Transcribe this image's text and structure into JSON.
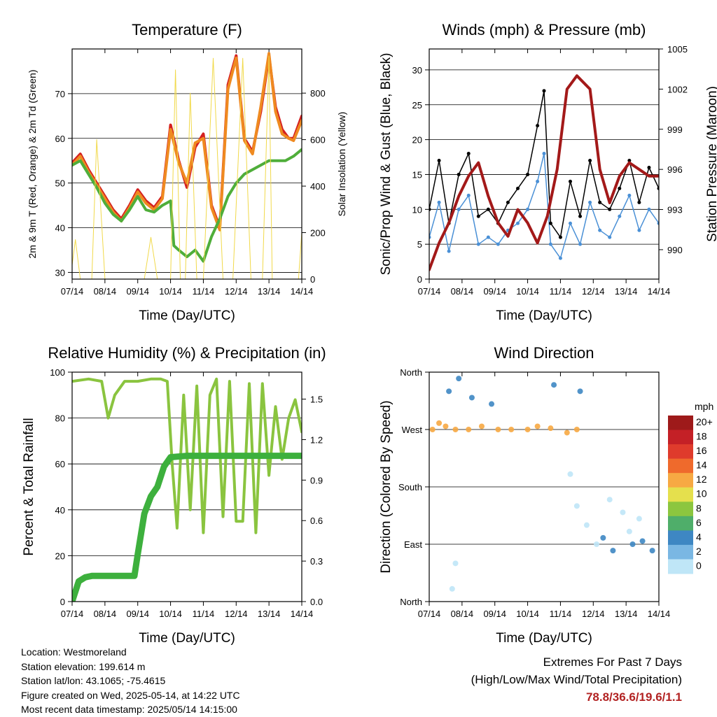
{
  "chart_data": [
    {
      "type": "line",
      "title": "Temperature (F)",
      "xlabel": "Time (Day/UTC)",
      "ylabel": "2m & 9m T (Red, Orange) & 2m Td (Green)",
      "ylabel_right": "Solar Insolation (Yellow)",
      "x_ticks": [
        "07/14",
        "08/14",
        "09/14",
        "10/14",
        "11/14",
        "12/14",
        "13/14",
        "14/14"
      ],
      "y_ticks": [
        "30",
        "40",
        "50",
        "60",
        "70"
      ],
      "y2_ticks": [
        "0",
        "200",
        "400",
        "600",
        "800"
      ],
      "ylim": [
        28.5,
        80
      ],
      "y2lim": [
        0,
        990
      ],
      "grid": true,
      "series": [
        {
          "color": "#d42020",
          "x": [
            0,
            0.25,
            0.5,
            0.75,
            1,
            1.25,
            1.5,
            1.75,
            2,
            2.25,
            2.5,
            2.75,
            3,
            3.25,
            3.5,
            3.75,
            4,
            4.25,
            4.5,
            4.75,
            5,
            5.25,
            5.5,
            5.75,
            6,
            6.2,
            6.4,
            6.6,
            6.75,
            7
          ],
          "values": [
            54.5,
            56.5,
            53,
            50,
            47,
            44,
            42,
            45,
            48.5,
            46,
            44.5,
            47,
            63,
            55,
            49,
            58,
            61,
            45,
            40,
            72,
            78.5,
            60,
            57,
            66,
            78.5,
            67,
            62,
            60,
            60,
            65
          ]
        },
        {
          "color": "#ef8a20",
          "x": [
            0,
            0.25,
            0.5,
            0.75,
            1,
            1.25,
            1.5,
            1.75,
            2,
            2.25,
            2.5,
            2.75,
            3,
            3.25,
            3.5,
            3.75,
            4,
            4.25,
            4.5,
            4.75,
            5,
            5.25,
            5.5,
            5.75,
            6,
            6.2,
            6.4,
            6.6,
            6.75,
            7
          ],
          "values": [
            54,
            56,
            52.5,
            49.5,
            46.5,
            43.5,
            41.5,
            44.5,
            48,
            45.5,
            44,
            46.5,
            62,
            54.5,
            50,
            59,
            60,
            44.5,
            39.5,
            71,
            78,
            59.5,
            56.5,
            67,
            79,
            66,
            61,
            60,
            59.5,
            64
          ]
        },
        {
          "color": "#4fae3a",
          "x": [
            0,
            0.25,
            0.5,
            0.75,
            1,
            1.25,
            1.5,
            1.75,
            2,
            2.25,
            2.5,
            2.75,
            3,
            3.1,
            3.25,
            3.5,
            3.75,
            4,
            4.25,
            4.5,
            4.75,
            5,
            5.25,
            5.5,
            5.75,
            6,
            6.25,
            6.5,
            6.75,
            7
          ],
          "values": [
            54,
            55,
            52,
            49,
            45.5,
            43,
            41.5,
            44,
            47,
            44,
            43.5,
            45,
            46,
            36,
            35,
            33.5,
            35,
            32.5,
            38,
            42,
            47,
            50,
            52,
            53,
            54,
            55,
            55,
            55,
            56,
            57.5
          ]
        },
        {
          "color": "#f1d94a",
          "x": [
            0,
            0.1,
            0.25,
            0.5,
            0.6,
            0.75,
            1,
            1.2,
            1.4,
            1.6,
            1.8,
            2,
            2.2,
            2.4,
            2.6,
            2.8,
            3,
            3.15,
            3.3,
            3.45,
            3.6,
            3.8,
            4,
            4.3,
            4.6,
            4.9,
            5.2,
            5.45,
            5.6,
            5.8,
            6,
            6.1,
            6.3,
            6.5,
            6.7,
            6.9,
            7
          ],
          "y2values": [
            60,
            170,
            0,
            0,
            0,
            600,
            0,
            0,
            0,
            0,
            0,
            0,
            0,
            180,
            0,
            0,
            0,
            900,
            0,
            0,
            800,
            0,
            0,
            950,
            0,
            0,
            950,
            0,
            0,
            0,
            960,
            0,
            0,
            0,
            0,
            0,
            200
          ]
        }
      ]
    },
    {
      "type": "line",
      "title": "Winds (mph) & Pressure (mb)",
      "xlabel": "Time (Day/UTC)",
      "ylabel": "Sonic/Prop Wind & Gust (Blue, Black)",
      "ylabel_right": "Station Pressure (Maroon)",
      "x_ticks": [
        "07/14",
        "08/14",
        "09/14",
        "10/14",
        "11/14",
        "12/14",
        "13/14",
        "14/14"
      ],
      "y_ticks": [
        "0",
        "5",
        "10",
        "15",
        "20",
        "25",
        "30"
      ],
      "y2_ticks": [
        "990",
        "993",
        "996",
        "999",
        "1002",
        "1005"
      ],
      "ylim": [
        0,
        33
      ],
      "y2lim": [
        987.8,
        1005
      ],
      "grid": true,
      "series": [
        {
          "color": "#4a90d6",
          "x": [
            0,
            0.3,
            0.6,
            0.9,
            1.2,
            1.5,
            1.8,
            2.1,
            2.4,
            2.7,
            3,
            3.3,
            3.5,
            3.7,
            4,
            4.3,
            4.6,
            4.9,
            5.2,
            5.5,
            5.8,
            6.1,
            6.4,
            6.7,
            7
          ],
          "values": [
            6,
            11,
            4,
            10,
            12,
            5,
            6,
            5,
            7,
            8,
            10,
            14,
            18,
            5,
            3,
            8,
            5,
            11,
            7,
            6,
            9,
            12,
            7,
            10,
            8
          ]
        },
        {
          "color": "#000000",
          "x": [
            0,
            0.3,
            0.6,
            0.9,
            1.2,
            1.5,
            1.8,
            2.1,
            2.4,
            2.7,
            3,
            3.3,
            3.5,
            3.7,
            4,
            4.3,
            4.6,
            4.9,
            5.2,
            5.5,
            5.8,
            6.1,
            6.4,
            6.7,
            7
          ],
          "values": [
            10,
            17,
            8,
            15,
            18,
            9,
            10,
            8,
            11,
            13,
            15,
            22,
            27,
            8,
            6,
            14,
            9,
            17,
            11,
            10,
            13,
            17,
            11,
            16,
            13
          ]
        },
        {
          "color": "#a31919",
          "x": [
            0,
            0.3,
            0.6,
            0.9,
            1.2,
            1.5,
            1.8,
            2.1,
            2.4,
            2.7,
            3,
            3.3,
            3.6,
            3.9,
            4.2,
            4.5,
            4.7,
            4.9,
            5.2,
            5.5,
            5.8,
            6.1,
            6.4,
            6.7,
            7
          ],
          "y2values": [
            988.5,
            990.5,
            992,
            994,
            995.5,
            996.5,
            994,
            992,
            991,
            993,
            992,
            990.5,
            992.5,
            996,
            1002,
            1003,
            1002.5,
            1002,
            996,
            993.5,
            995.5,
            996.5,
            996,
            995.5,
            995.5
          ]
        }
      ]
    },
    {
      "type": "line",
      "title": "Relative Humidity (%) & Precipitation (in)",
      "xlabel": "Time (Day/UTC)",
      "ylabel": "Percent & Total Rainfall",
      "x_ticks": [
        "07/14",
        "08/14",
        "09/14",
        "10/14",
        "11/14",
        "12/14",
        "13/14",
        "14/14"
      ],
      "y_ticks": [
        "0",
        "20",
        "40",
        "60",
        "80",
        "100"
      ],
      "y2_ticks": [
        "0.0",
        "0.3",
        "0.6",
        "0.9",
        "1.2",
        "1.5"
      ],
      "ylim": [
        0,
        100
      ],
      "y2lim": [
        0,
        1.7
      ],
      "grid": true,
      "series": [
        {
          "color": "#8ac43f",
          "x": [
            0,
            0.5,
            0.9,
            1.1,
            1.3,
            1.6,
            2,
            2.4,
            2.7,
            2.9,
            3.05,
            3.2,
            3.4,
            3.6,
            3.8,
            4,
            4.2,
            4.4,
            4.6,
            4.8,
            5,
            5.2,
            5.4,
            5.6,
            5.8,
            6,
            6.2,
            6.4,
            6.6,
            6.8,
            7
          ],
          "values": [
            96,
            97,
            96,
            80,
            90,
            96,
            96,
            97,
            97,
            96,
            60,
            32,
            90,
            40,
            94,
            30,
            90,
            97,
            37,
            96,
            35,
            35,
            95,
            30,
            95,
            55,
            85,
            62,
            80,
            88,
            74
          ]
        },
        {
          "color": "#3db03d",
          "x": [
            0,
            0.2,
            0.4,
            0.6,
            1,
            1.5,
            1.9,
            2,
            2.2,
            2.4,
            2.6,
            2.8,
            3,
            3.5,
            4,
            5,
            6,
            7
          ],
          "y2values": [
            0,
            0.15,
            0.18,
            0.19,
            0.19,
            0.19,
            0.19,
            0.35,
            0.65,
            0.78,
            0.85,
            1.0,
            1.07,
            1.08,
            1.08,
            1.08,
            1.08,
            1.08
          ]
        }
      ]
    },
    {
      "type": "scatter",
      "title": "Wind Direction",
      "xlabel": "Time (Day/UTC)",
      "ylabel": "Direction (Colored By Speed)",
      "x_ticks": [
        "07/14",
        "08/14",
        "09/14",
        "10/14",
        "11/14",
        "12/14",
        "13/14",
        "14/14"
      ],
      "y_ticks": [
        "North",
        "East",
        "South",
        "West",
        "North"
      ],
      "colorbar_label": "mph",
      "colorbar_levels": [
        "20+",
        "18",
        "16",
        "14",
        "12",
        "10",
        "8",
        "6",
        "4",
        "2",
        "0"
      ],
      "colorbar_colors": [
        "#9e1a1a",
        "#c42026",
        "#df3b2c",
        "#ef6a2c",
        "#f7a943",
        "#e5e04d",
        "#8cc63f",
        "#4fae6a",
        "#3e87c3",
        "#7ab7e3",
        "#bfe6f7"
      ],
      "series": [
        {
          "color": "#f7a943",
          "x": [
            0.1,
            0.3,
            0.5,
            0.8,
            1.2,
            1.6,
            2.1,
            2.5,
            3.0,
            3.3,
            3.7,
            4.2,
            4.5
          ],
          "values": [
            270,
            280,
            275,
            270,
            270,
            275,
            270,
            270,
            270,
            275,
            272,
            265,
            270
          ]
        },
        {
          "color": "#3e87c3",
          "x": [
            0.6,
            0.9,
            1.3,
            1.9,
            3.8,
            4.6,
            5.3,
            5.6,
            6.2,
            6.5,
            6.8
          ],
          "values": [
            330,
            350,
            320,
            310,
            340,
            330,
            100,
            80,
            90,
            95,
            80
          ]
        },
        {
          "color": "#bfe6f7",
          "x": [
            0.7,
            0.8,
            4.3,
            4.5,
            4.8,
            5.1,
            5.5,
            5.9,
            6.1,
            6.4
          ],
          "values": [
            20,
            60,
            200,
            150,
            120,
            90,
            160,
            140,
            110,
            130
          ]
        }
      ]
    }
  ],
  "footer": {
    "location": "Location: Westmoreland",
    "elevation": "Station elevation: 199.614 m",
    "latlon": "Station lat/lon: 43.1065; -75.4615",
    "created": "Figure created on Wed, 2025-05-14, at 14:22 UTC",
    "recent": "Most recent data timestamp: 2025/05/14 14:15:00"
  },
  "extremes": {
    "title": "Extremes For Past 7 Days",
    "subtitle": "(High/Low/Max Wind/Total Precipitation)",
    "value": "78.8/36.6/19.6/1.1"
  }
}
